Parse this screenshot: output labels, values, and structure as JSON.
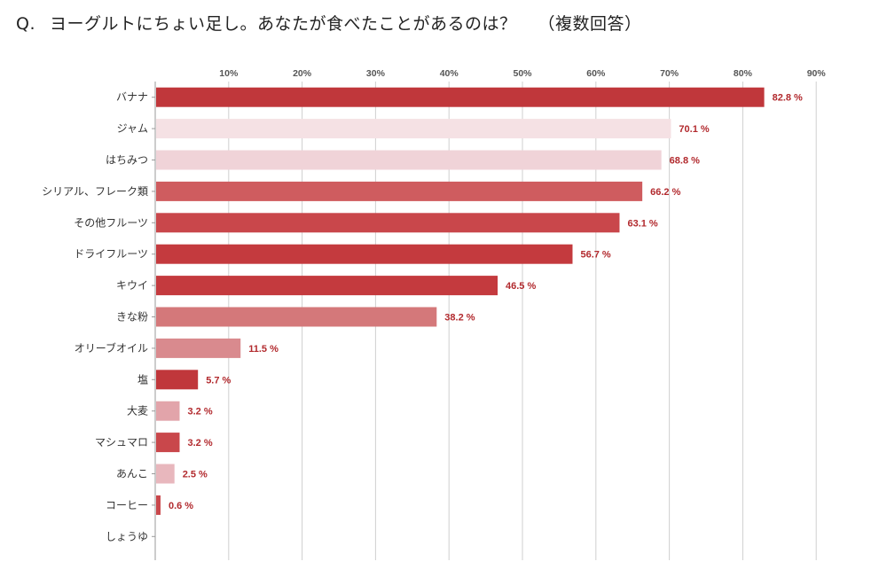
{
  "question": {
    "prefix": "Q.",
    "text": "ヨーグルトにちょい足し。あなたが食べたことがあるのは？",
    "note": "（複数回答）"
  },
  "chart_data": {
    "type": "bar",
    "orientation": "horizontal",
    "title": "",
    "xlabel": "",
    "ylabel": "",
    "xlim": [
      0,
      90
    ],
    "x_ticks": [
      "10%",
      "20%",
      "30%",
      "40%",
      "50%",
      "60%",
      "70%",
      "80%",
      "90%"
    ],
    "x_tick_values": [
      10,
      20,
      30,
      40,
      50,
      60,
      70,
      80,
      90
    ],
    "x_axis_position": "top",
    "grid": true,
    "legend": "none",
    "categories": [
      "バナナ",
      "ジャム",
      "はちみつ",
      "シリアル、フレーク類",
      "その他フルーツ",
      "ドライフルーツ",
      "キウイ",
      "きな粉",
      "オリーブオイル",
      "塩",
      "大麦",
      "マシュマロ",
      "あんこ",
      "コーヒー",
      "しょうゆ"
    ],
    "values": [
      82.8,
      70.1,
      68.8,
      66.2,
      63.1,
      56.7,
      46.5,
      38.2,
      11.5,
      5.7,
      3.2,
      3.2,
      2.5,
      0.6,
      0
    ],
    "value_labels": [
      "82.8 %",
      "70.1 %",
      "68.8 %",
      "66.2 %",
      "63.1 %",
      "56.7 %",
      "46.5 %",
      "38.2 %",
      "11.5 %",
      "5.7 %",
      "3.2 %",
      "3.2 %",
      "2.5 %",
      "0.6 %",
      ""
    ],
    "colors": [
      "#c0373b",
      "#f5e1e4",
      "#f0d3d8",
      "#cf5c5f",
      "#c9474b",
      "#c43a3e",
      "#c43a3e",
      "#d4787a",
      "#d98a8e",
      "#c0373b",
      "#e2a4aa",
      "#c9474b",
      "#e8b7bd",
      "#c9474b",
      "#c9474b"
    ],
    "value_label_color": "#b22a2e",
    "grid_color": "#cfcfcf"
  }
}
